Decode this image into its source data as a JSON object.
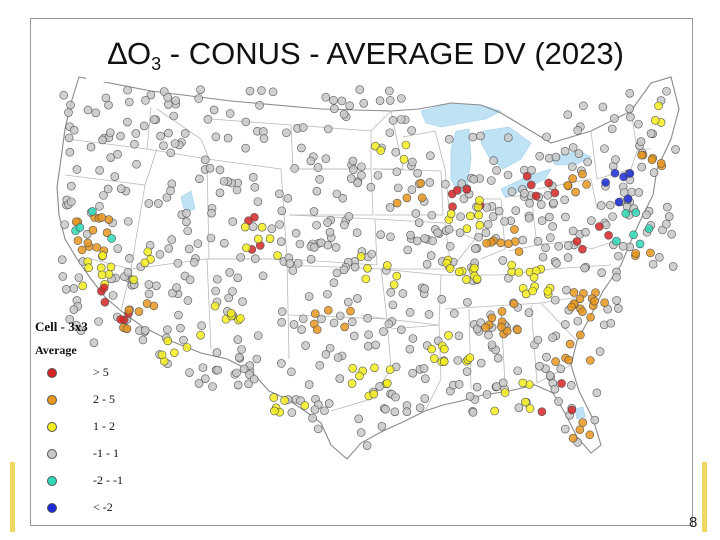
{
  "title": {
    "prefix": "∆O",
    "sub": "3",
    "rest": " - CONUS - AVERAGE DV (2023)"
  },
  "legend": {
    "heading": "Cell - 3x3",
    "subheading": "Average",
    "items": [
      {
        "label": "> 5",
        "color": "#d62424"
      },
      {
        "label": "2 - 5",
        "color": "#e8961e"
      },
      {
        "label": "1 - 2",
        "color": "#f5ef1e"
      },
      {
        "label": "-1 - 1",
        "color": "#c8c8c8"
      },
      {
        "label": "-2 - -1",
        "color": "#2fd9b8"
      },
      {
        "label": "< -2",
        "color": "#1a2ad8"
      }
    ]
  },
  "slide_number": "8"
}
